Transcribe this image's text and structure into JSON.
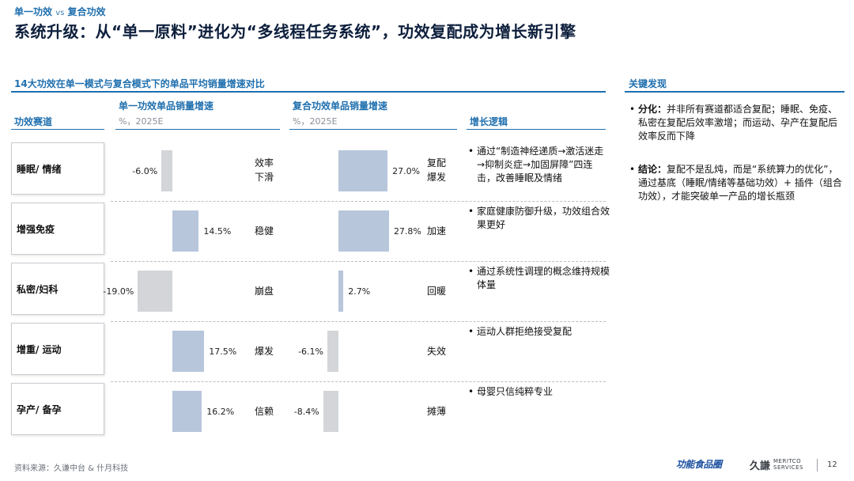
{
  "header": {
    "kicker_a": "单一功效",
    "kicker_vs": "vs",
    "kicker_b": "复合功效",
    "title": "系统升级：从“单一原料”进化为“多线程任务系统”，功效复配成为增长新引擎"
  },
  "chart_section_title": "14大功效在单一模式与复合模式下的单品平均销量增速对比",
  "key_findings": {
    "title": "关键发现",
    "items": [
      {
        "label": "分化：",
        "text": "并非所有赛道都适合复配；睡眠、免疫、私密在复配后效率激增；而运动、孕产在复配后效率反而下降"
      },
      {
        "label": "结论：",
        "text": "复配不是乱炖，而是“系统算力的优化”，通过基底（睡眠/情绪等基础功效）+ 插件（组合功效），才能突破单一产品的增长瓶颈"
      }
    ]
  },
  "columns": {
    "category": "功效赛道",
    "single": "单一功效单品销量增速",
    "single_sub": "%，2025E",
    "composite": "复合功效单品销量增速",
    "composite_sub": "%，2025E",
    "logic": "增长逻辑"
  },
  "chart_data": {
    "type": "bar",
    "title": "14大功效在单一模式与复合模式下的单品平均销量增速对比",
    "unit": "%，2025E",
    "categories": [
      "睡眠/ 情绪",
      "增强免疫",
      "私密/妇科",
      "增重/ 运动",
      "孕产/ 备孕"
    ],
    "series": [
      {
        "name": "单一功效单品销量增速",
        "values": [
          -6.0,
          14.5,
          -19.0,
          17.5,
          16.2
        ],
        "labels": [
          "-6.0%",
          "14.5%",
          "-19.0%",
          "17.5%",
          "16.2%"
        ]
      },
      {
        "name": "复合功效单品销量增速",
        "values": [
          27.0,
          27.8,
          2.7,
          -6.1,
          -8.4
        ],
        "labels": [
          "27.0%",
          "27.8%",
          "2.7%",
          "-6.1%",
          "-8.4%"
        ]
      }
    ],
    "single_trend": [
      "效率\n下滑",
      "稳健",
      "崩盘",
      "爆发",
      "信赖"
    ],
    "composite_trend": [
      "复配\n爆发",
      "加速",
      "回暖",
      "失效",
      "摊薄"
    ],
    "logic": [
      "通过“制造神经递质→激活迷走→抑制炎症→加固屏障”四连击，改善睡眠及情绪",
      "家庭健康防御升级，功效组合效果更好",
      "通过系统性调理的概念维持规模体量",
      "运动人群拒绝接受复配",
      "母婴只信纯粹专业"
    ]
  },
  "footer": {
    "source": "资料来源：久谦中台 & 什月科技",
    "logo_brand": "功能食品圈",
    "logo_company": "久謙",
    "logo_company_sub1": "MERITCO",
    "logo_company_sub2": "SERVICES",
    "page": "12"
  },
  "colors": {
    "accent": "#1f6fae",
    "bar_positive": "#b7c6db",
    "bar_negative": "#d3d5d8"
  }
}
